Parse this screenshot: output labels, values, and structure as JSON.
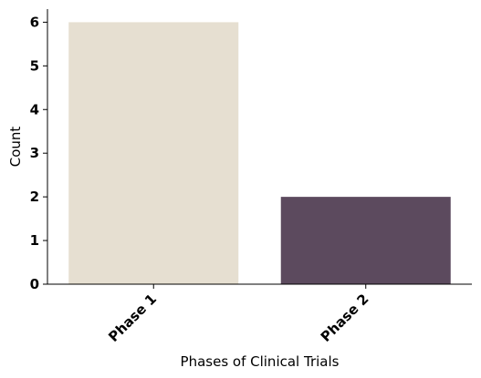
{
  "chart_data": {
    "type": "bar",
    "categories": [
      "Phase 1",
      "Phase 2"
    ],
    "values": [
      6,
      2
    ],
    "colors": [
      "#e6dfd1",
      "#5c4a5e"
    ],
    "title": "",
    "xlabel": "Phases of Clinical Trials",
    "ylabel": "Count",
    "ylim": [
      0,
      6.3
    ],
    "yticks": [
      0,
      1,
      2,
      3,
      4,
      5,
      6
    ],
    "grid": false,
    "legend": "none"
  }
}
